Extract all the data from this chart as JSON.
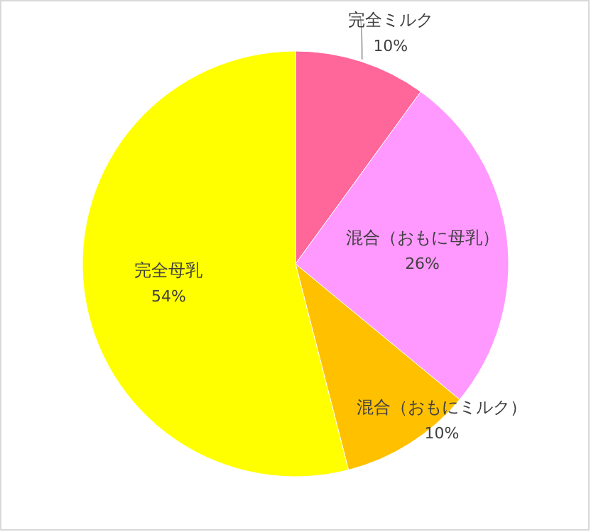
{
  "chart_data": {
    "type": "pie",
    "categories": [
      "完全ミルク",
      "混合（おもに母乳）",
      "混合（おもにミルク）",
      "完全母乳"
    ],
    "values": [
      10,
      26,
      10,
      54
    ],
    "value_labels": [
      "10%",
      "26%",
      "10%",
      "54%"
    ],
    "colors": [
      "#ff6699",
      "#ff99ff",
      "#ffc000",
      "#ffff00"
    ],
    "legend": false
  }
}
